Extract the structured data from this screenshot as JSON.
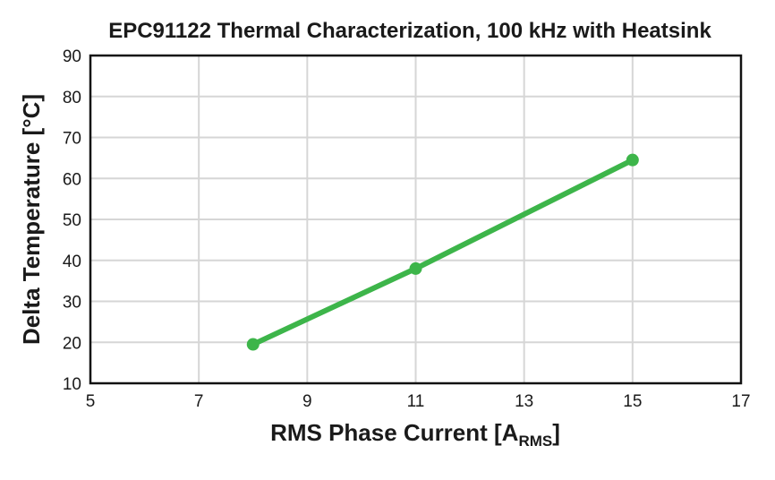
{
  "chart_data": {
    "type": "line",
    "title": "EPC91122 Thermal Characterization, 100 kHz with Heatsink",
    "xlabel": "RMS Phase Current [A",
    "xlabel_subscript": "RMS",
    "xlabel_suffix": "]",
    "ylabel": "Delta Temperature [°C]",
    "xlim": [
      5,
      17
    ],
    "ylim": [
      10,
      90
    ],
    "xticks": [
      "5",
      "7",
      "9",
      "11",
      "13",
      "15",
      "17"
    ],
    "yticks": [
      "10",
      "20",
      "30",
      "40",
      "50",
      "60",
      "70",
      "80",
      "90"
    ],
    "grid": true,
    "series": [
      {
        "color": "#3db54a",
        "x": [
          8,
          11,
          15
        ],
        "y": [
          19.5,
          38,
          64.5
        ]
      }
    ]
  }
}
